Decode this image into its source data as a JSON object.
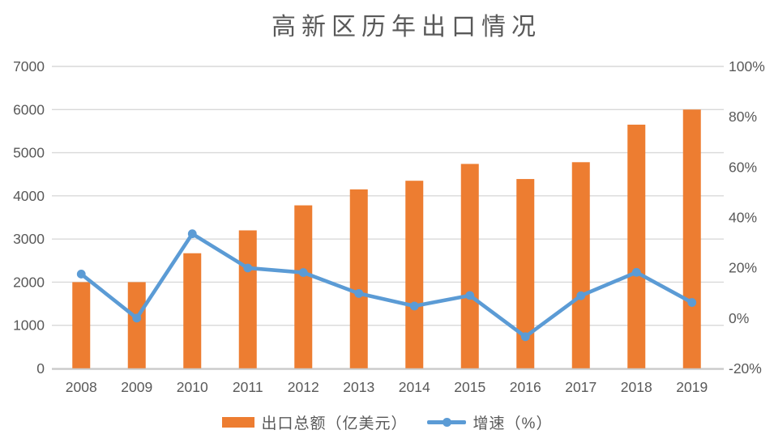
{
  "chart_data": {
    "type": "combo-bar-line",
    "title": "高新区历年出口情况",
    "categories": [
      "2008",
      "2009",
      "2010",
      "2011",
      "2012",
      "2013",
      "2014",
      "2015",
      "2016",
      "2017",
      "2018",
      "2019"
    ],
    "series": [
      {
        "name": "出口总额（亿美元）",
        "type": "bar",
        "axis": "left",
        "color": "#ED7D31",
        "values": [
          2000,
          2000,
          2670,
          3200,
          3780,
          4150,
          4350,
          4740,
          4390,
          4780,
          5650,
          6000
        ]
      },
      {
        "name": "增速（%）",
        "type": "line",
        "axis": "right",
        "color": "#5B9BD5",
        "values": [
          17.5,
          0.0,
          33.5,
          19.9,
          18.1,
          9.8,
          4.8,
          9.0,
          -7.4,
          8.9,
          18.2,
          6.2
        ]
      }
    ],
    "left_axis": {
      "min": 0,
      "max": 7000,
      "step": 1000,
      "tick_labels": [
        "0",
        "1000",
        "2000",
        "3000",
        "4000",
        "5000",
        "6000",
        "7000"
      ]
    },
    "right_axis": {
      "min": -20,
      "max": 100,
      "step": 20,
      "tick_labels": [
        "-20%",
        "0%",
        "20%",
        "40%",
        "60%",
        "80%",
        "100%"
      ]
    },
    "grid": true,
    "legend_position": "bottom",
    "colors": {
      "background": "#FFFFFF",
      "gridline": "#D9D9D9",
      "axis_line": "#C9C9C9",
      "text": "#595959"
    }
  }
}
